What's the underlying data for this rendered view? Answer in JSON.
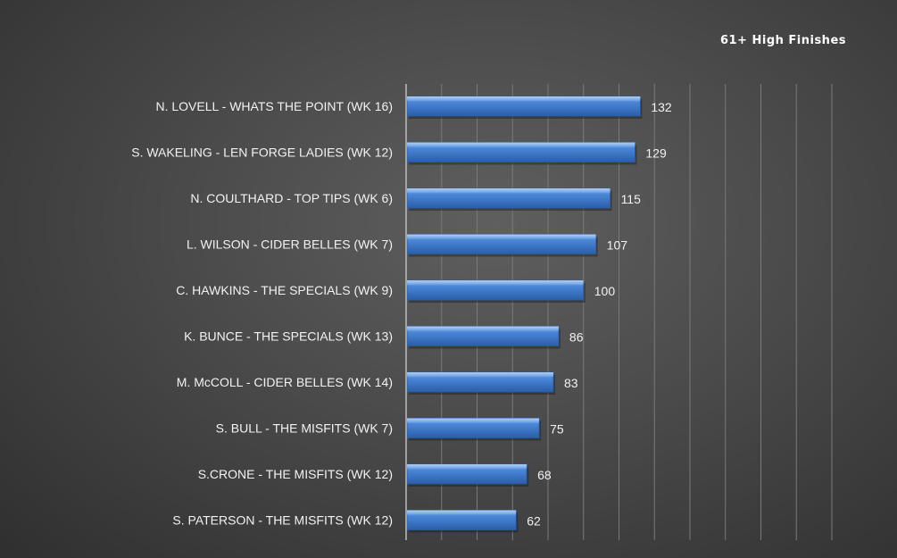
{
  "chart_data": {
    "type": "bar",
    "orientation": "horizontal",
    "title": "61+ High Finishes",
    "categories": [
      "N. LOVELL - WHATS THE POINT (WK 16)",
      "S. WAKELING - LEN FORGE LADIES (WK 12)",
      "N. COULTHARD - TOP TIPS (WK 6)",
      "L. WILSON - CIDER BELLES (WK 7)",
      "C. HAWKINS - THE SPECIALS (WK 9)",
      "K. BUNCE - THE SPECIALS (WK 13)",
      "M. McCOLL - CIDER BELLES (WK 14)",
      "S. BULL - THE MISFITS (WK 7)",
      "S.CRONE - THE MISFITS (WK 12)",
      "S. PATERSON - THE MISFITS (WK 12)"
    ],
    "values": [
      132,
      129,
      115,
      107,
      100,
      86,
      83,
      75,
      68,
      62
    ],
    "xlim": [
      0,
      240
    ],
    "grid": true,
    "data_labels": true,
    "legend": false,
    "colors": {
      "bar": "#4a86d8",
      "bar_dark": "#2a5ea8",
      "bar_light": "#8fbaf0",
      "grid": "#7a7a7a",
      "axis": "#bdbdbd",
      "text": "#f2f2f2"
    }
  }
}
